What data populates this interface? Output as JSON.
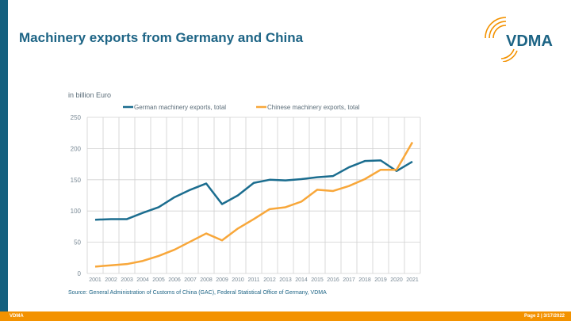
{
  "header": {
    "title": "Machinery exports from Germany and China",
    "logo_text": "VDMA"
  },
  "footer": {
    "left": "VDMA",
    "right": "Page 2 | 3/17/2022",
    "source": "Source: General Administration of Customs of China (GAC), Federal Statistical Office of Germany, VDMA"
  },
  "colors": {
    "german": "#1b6d8f",
    "chinese": "#f8a73a",
    "accent": "#f39200",
    "brand": "#14607f"
  },
  "chart_data": {
    "type": "line",
    "ylabel": "in billion Euro",
    "ylim": [
      0,
      250
    ],
    "yticks": [
      0,
      50,
      100,
      150,
      200,
      250
    ],
    "grid": true,
    "legend": "top",
    "categories": [
      "2001",
      "2002",
      "2003",
      "2004",
      "2005",
      "2006",
      "2007",
      "2008",
      "2009",
      "2010",
      "2011",
      "2012",
      "2013",
      "2014",
      "2015",
      "2016",
      "2017",
      "2018",
      "2019",
      "2020",
      "2021"
    ],
    "series": [
      {
        "name": "German machinery exports, total",
        "values": [
          86,
          87,
          87,
          97,
          106,
          122,
          134,
          144,
          111,
          125,
          145,
          150,
          149,
          151,
          154,
          156,
          170,
          180,
          181,
          164,
          179
        ]
      },
      {
        "name": "Chinese machinery exports, total",
        "values": [
          11,
          13,
          15,
          20,
          28,
          38,
          51,
          64,
          53,
          72,
          87,
          103,
          106,
          115,
          134,
          132,
          140,
          151,
          166,
          166,
          210
        ]
      }
    ]
  }
}
